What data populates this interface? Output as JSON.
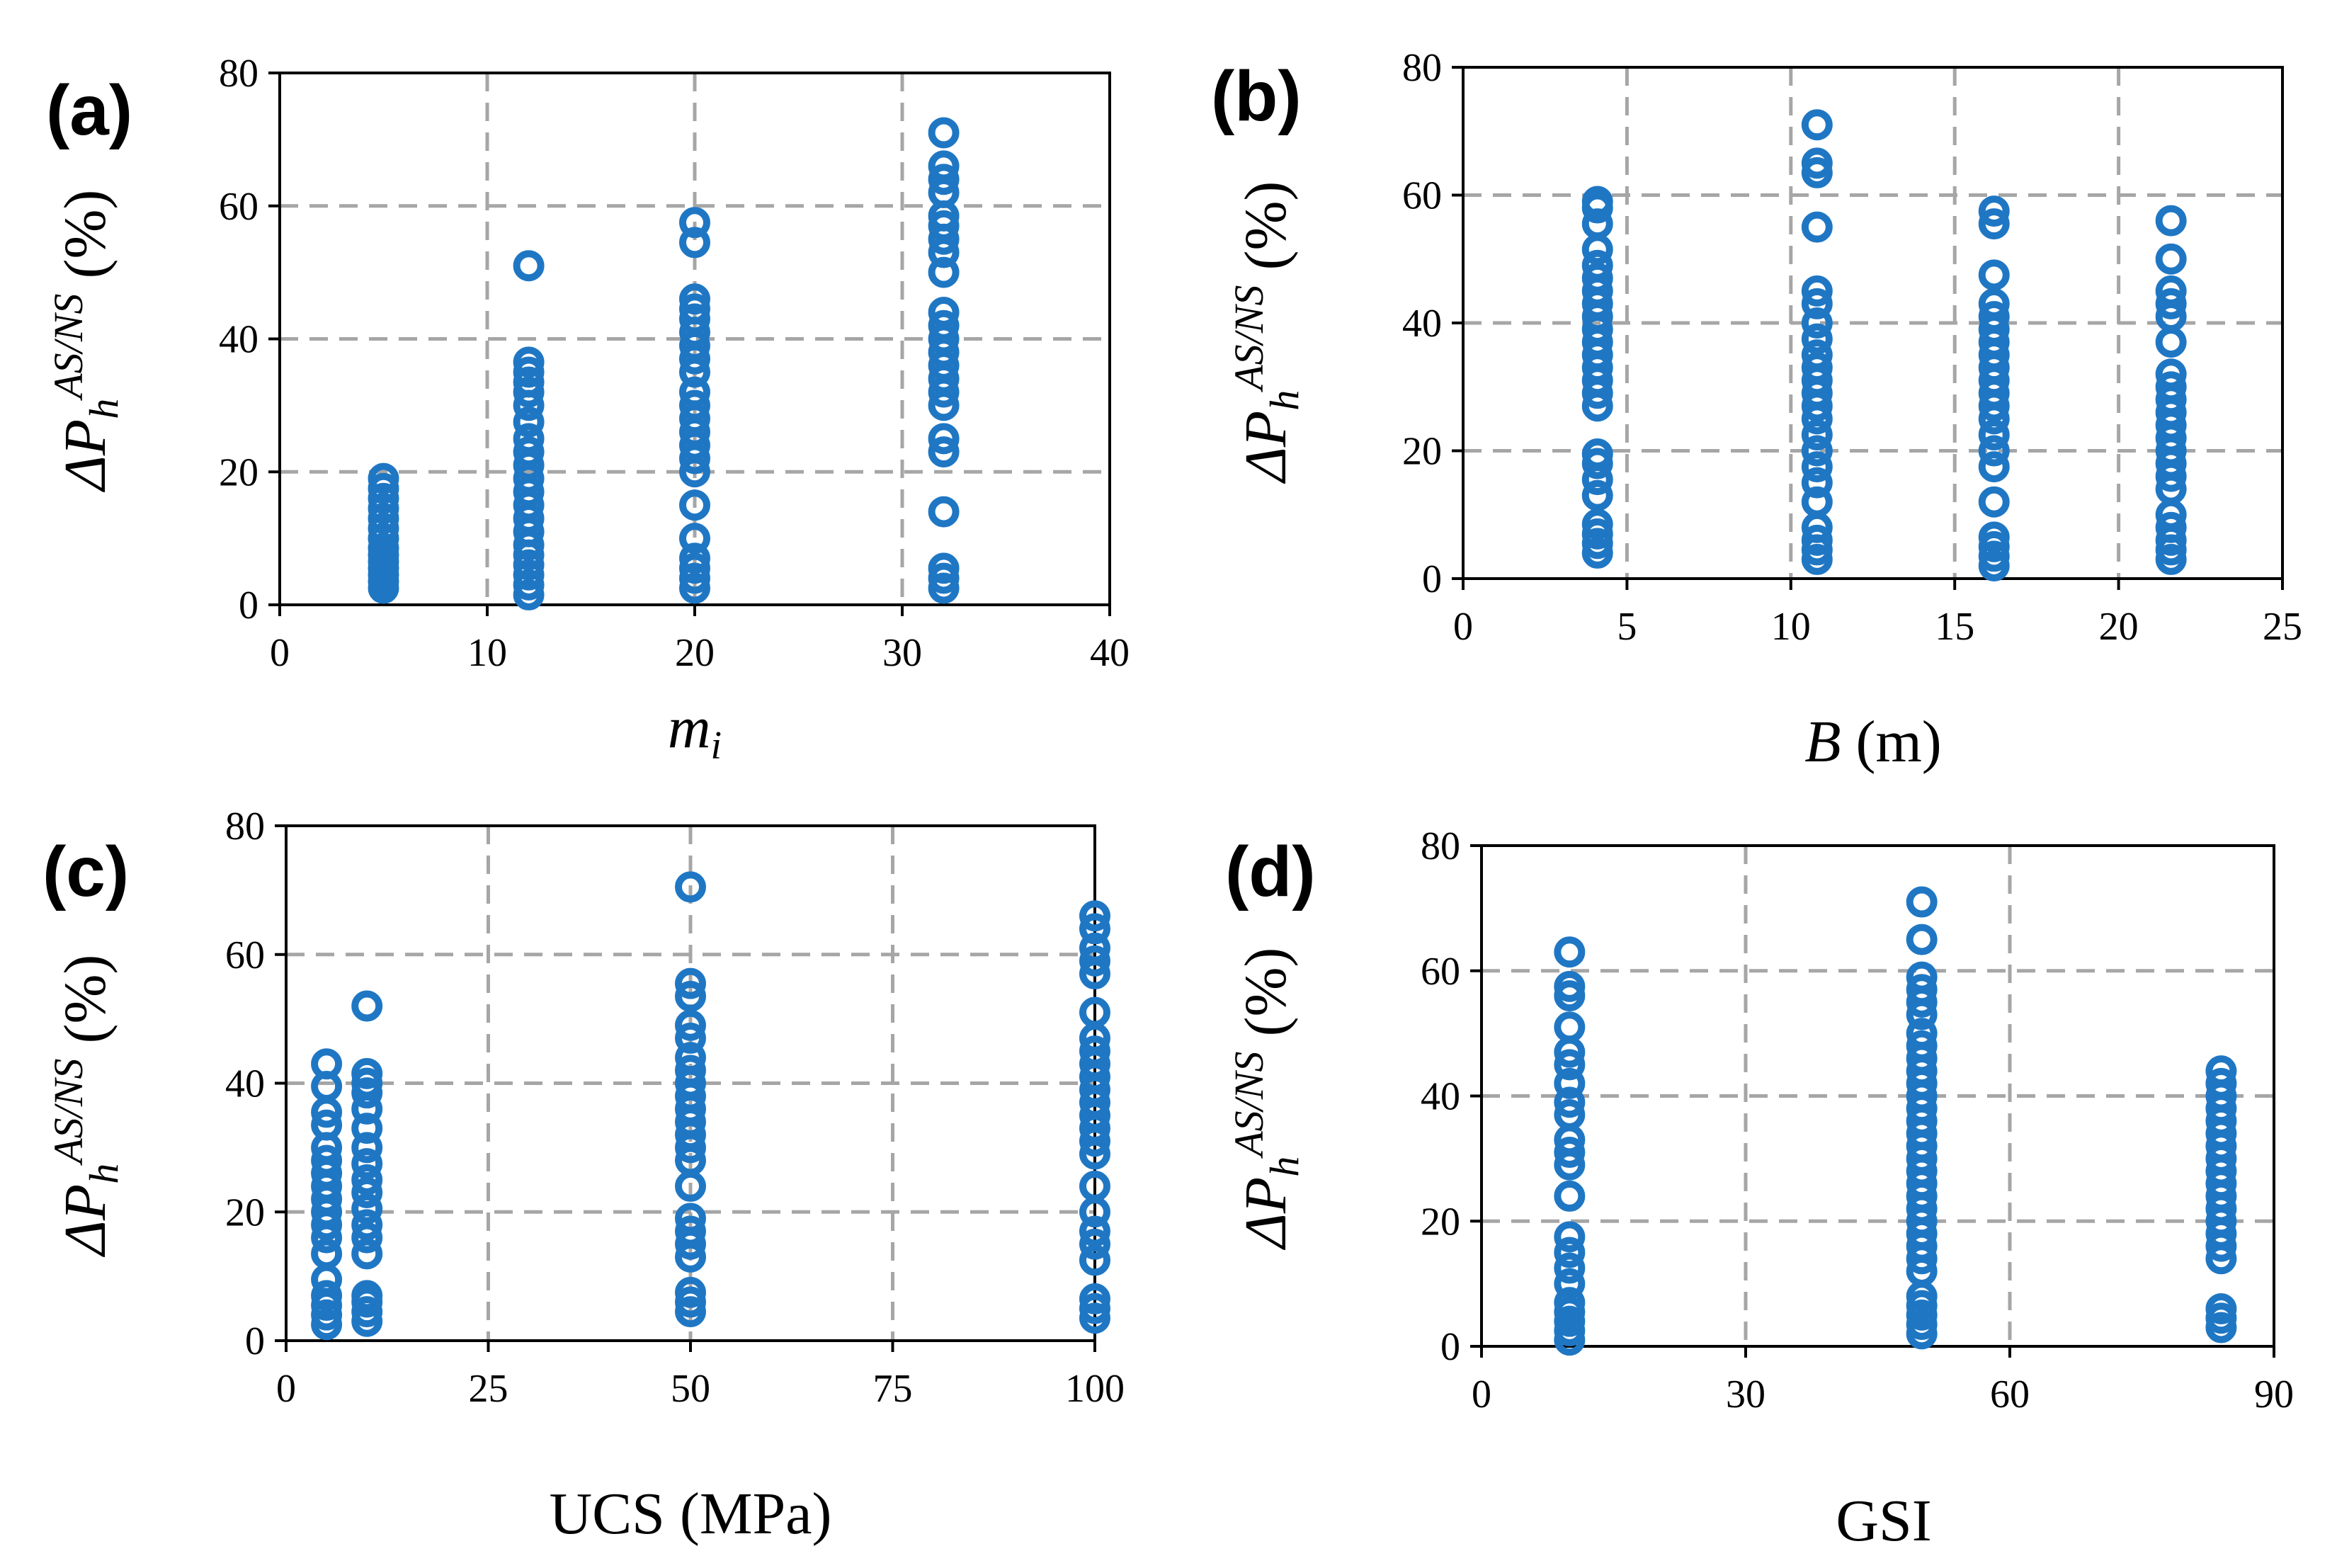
{
  "figure": {
    "point_color": "#1f77c4",
    "grid_color": "#a6a6a6"
  },
  "chart_data": [
    {
      "id": "a",
      "type": "scatter",
      "panel_label": "(a)",
      "title": "",
      "xlabel": "m",
      "xlabel_sub": "i",
      "xlabel_suffix": "",
      "ylabel": {
        "prefix": "ΔP",
        "sub": "h",
        "sup": "AS/NS",
        "suffix": " (%)"
      },
      "xlim": [
        0,
        40
      ],
      "ylim": [
        0,
        80
      ],
      "xticks": [
        0,
        10,
        20,
        30,
        40
      ],
      "yticks": [
        0,
        20,
        40,
        60,
        80
      ],
      "xtick_labels": [
        "0",
        "10",
        "20",
        "30",
        "40"
      ],
      "ytick_labels": [
        "0",
        "20",
        "40",
        "60",
        "80"
      ],
      "grid": true,
      "series": [
        {
          "name": "x = 5",
          "x": 5,
          "y": [
            2.5,
            3.5,
            4.5,
            5.5,
            6.5,
            7.5,
            8.5,
            10,
            11.5,
            13,
            14.5,
            16,
            17.5,
            19
          ]
        },
        {
          "name": "x = 12",
          "x": 12,
          "y": [
            1.5,
            3,
            4.5,
            6,
            7.5,
            9,
            11,
            13,
            15,
            17,
            19,
            21,
            23,
            25,
            27.5,
            30,
            32,
            33.5,
            35,
            36.5,
            51
          ]
        },
        {
          "name": "x = 20",
          "x": 20,
          "y": [
            2.5,
            4,
            5.5,
            7,
            10,
            15,
            20,
            22,
            24,
            26,
            28,
            30,
            32,
            35,
            37,
            39,
            41,
            43,
            44.5,
            46,
            54.5,
            57.5
          ]
        },
        {
          "name": "x = 32",
          "x": 32,
          "y": [
            2.5,
            4,
            5.5,
            14,
            23,
            25,
            30,
            32,
            34,
            36,
            38,
            40,
            42,
            44,
            50,
            53,
            55,
            57,
            58.5,
            62,
            64,
            66,
            71
          ]
        }
      ]
    },
    {
      "id": "b",
      "type": "scatter",
      "panel_label": "(b)",
      "title": "",
      "xlabel": "B",
      "xlabel_sub": "",
      "xlabel_suffix": " (m)",
      "ylabel": {
        "prefix": "ΔP",
        "sub": "h",
        "sup": "AS/NS",
        "suffix": " (%)"
      },
      "xlim": [
        0,
        25
      ],
      "ylim": [
        0,
        80
      ],
      "xticks": [
        0,
        5,
        10,
        15,
        20,
        25
      ],
      "yticks": [
        0,
        20,
        40,
        60,
        80
      ],
      "xtick_labels": [
        "0",
        "5",
        "10",
        "15",
        "20",
        "25"
      ],
      "ytick_labels": [
        "0",
        "20",
        "40",
        "60",
        "80"
      ],
      "grid": true,
      "series": [
        {
          "name": "x = 4.1",
          "x": 4.1,
          "y": [
            4,
            5.5,
            7,
            8.5,
            13,
            15.5,
            18,
            19.5,
            27,
            29,
            31,
            33,
            35,
            37,
            39,
            41,
            43,
            45,
            47,
            49,
            51.5,
            55.5,
            58,
            59
          ]
        },
        {
          "name": "x = 10.8",
          "x": 10.8,
          "y": [
            3,
            4.5,
            6,
            8,
            12,
            15,
            17.5,
            20,
            22.5,
            25,
            27,
            29,
            31,
            33,
            35,
            37.5,
            40,
            43,
            45,
            55,
            63.5,
            65,
            71
          ]
        },
        {
          "name": "x = 16.2",
          "x": 16.2,
          "y": [
            2,
            3.5,
            5,
            6.5,
            12,
            17.5,
            20,
            22.5,
            25,
            27,
            29,
            31,
            33,
            35,
            37,
            39,
            41,
            43,
            47.5,
            55.5,
            57.5
          ]
        },
        {
          "name": "x = 21.6",
          "x": 21.6,
          "y": [
            3,
            4.5,
            6,
            8,
            10,
            14,
            16,
            18,
            20,
            22,
            24,
            26,
            28,
            30,
            32,
            37,
            41,
            43,
            45,
            50,
            56
          ]
        }
      ]
    },
    {
      "id": "c",
      "type": "scatter",
      "panel_label": "(c)",
      "title": "",
      "xlabel": "UCS (MPa)",
      "xlabel_sub": "",
      "xlabel_suffix": "",
      "ylabel": {
        "prefix": "ΔP",
        "sub": "h",
        "sup": "AS/NS",
        "suffix": " (%)"
      },
      "xlim": [
        0,
        100
      ],
      "ylim": [
        0,
        80
      ],
      "xticks": [
        0,
        25,
        50,
        75,
        100
      ],
      "yticks": [
        0,
        20,
        40,
        60,
        80
      ],
      "xtick_labels": [
        "0",
        "25",
        "50",
        "75",
        "100"
      ],
      "ytick_labels": [
        "0",
        "20",
        "40",
        "60",
        "80"
      ],
      "grid": true,
      "series": [
        {
          "name": "x = 5",
          "x": 5,
          "y": [
            2.5,
            4,
            5.5,
            7,
            9.5,
            13.5,
            16,
            18,
            20,
            22,
            24,
            26,
            28,
            30,
            33.5,
            35.5,
            39.5,
            43
          ]
        },
        {
          "name": "x = 10",
          "x": 10,
          "y": [
            3,
            4.5,
            6,
            7,
            13.5,
            16,
            18,
            20.5,
            23,
            25,
            27.5,
            30,
            33,
            36,
            38.5,
            40,
            41.5,
            52
          ]
        },
        {
          "name": "x = 50",
          "x": 50,
          "y": [
            4.5,
            6,
            7.5,
            13,
            15,
            17,
            19,
            24,
            28,
            30,
            32,
            34,
            36,
            38,
            40,
            42,
            44,
            47,
            49,
            53.5,
            55.5,
            70.5
          ]
        },
        {
          "name": "x = 100",
          "x": 100,
          "y": [
            3.5,
            5,
            6.5,
            12.5,
            15,
            17,
            20,
            24,
            29,
            31,
            33,
            35,
            37,
            39,
            41,
            43,
            45,
            47,
            51,
            57,
            59,
            61,
            64,
            66
          ]
        }
      ]
    },
    {
      "id": "d",
      "type": "scatter",
      "panel_label": "(d)",
      "title": "",
      "xlabel": "GSI",
      "xlabel_sub": "",
      "xlabel_suffix": "",
      "ylabel": {
        "prefix": "ΔP",
        "sub": "h",
        "sup": "AS/NS",
        "suffix": " (%)"
      },
      "xlim": [
        0,
        90
      ],
      "ylim": [
        0,
        80
      ],
      "xticks": [
        0,
        30,
        60,
        90
      ],
      "yticks": [
        0,
        20,
        40,
        60,
        80
      ],
      "xtick_labels": [
        "0",
        "30",
        "60",
        "90"
      ],
      "ytick_labels": [
        "0",
        "20",
        "40",
        "60",
        "80"
      ],
      "grid": true,
      "series": [
        {
          "name": "x = 10",
          "x": 10,
          "y": [
            1,
            2.5,
            4,
            5.5,
            7,
            10,
            12.5,
            15,
            17.5,
            24,
            29,
            31,
            33,
            37,
            39,
            42,
            45,
            47,
            51,
            56,
            57.5,
            63
          ]
        },
        {
          "name": "x = 50",
          "x": 50,
          "y": [
            2,
            3.5,
            5,
            6.5,
            8,
            12,
            14,
            16,
            18,
            20,
            22,
            24,
            26,
            28,
            30,
            32,
            34,
            36,
            38,
            40,
            42,
            44,
            46,
            48,
            50,
            53,
            55,
            57,
            59,
            65,
            71
          ]
        },
        {
          "name": "x = 84",
          "x": 84,
          "y": [
            3,
            4.5,
            6,
            14,
            16,
            18,
            20,
            22,
            24,
            26,
            28,
            30,
            32,
            34,
            36,
            38,
            40,
            42,
            44
          ]
        }
      ]
    }
  ]
}
